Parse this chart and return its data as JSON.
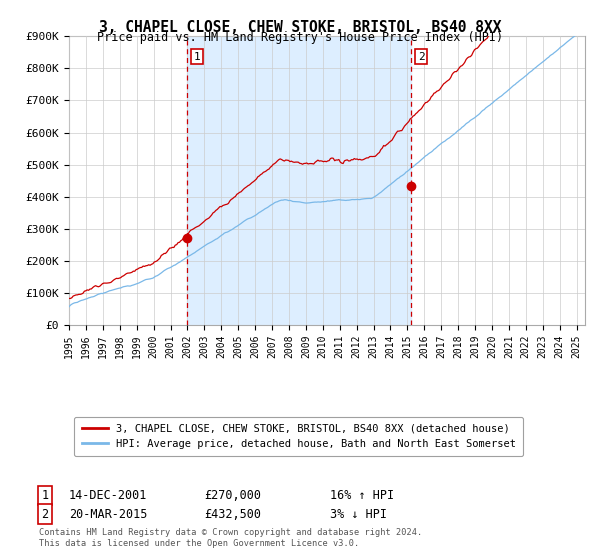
{
  "title": "3, CHAPEL CLOSE, CHEW STOKE, BRISTOL, BS40 8XX",
  "subtitle": "Price paid vs. HM Land Registry's House Price Index (HPI)",
  "xmin": 1995.0,
  "xmax": 2025.5,
  "ymin": 0,
  "ymax": 900000,
  "yticks": [
    0,
    100000,
    200000,
    300000,
    400000,
    500000,
    600000,
    700000,
    800000,
    900000
  ],
  "ytick_labels": [
    "£0",
    "£100K",
    "£200K",
    "£300K",
    "£400K",
    "£500K",
    "£600K",
    "£700K",
    "£800K",
    "£900K"
  ],
  "xtick_years": [
    1995,
    1996,
    1997,
    1998,
    1999,
    2000,
    2001,
    2002,
    2003,
    2004,
    2005,
    2006,
    2007,
    2008,
    2009,
    2010,
    2011,
    2012,
    2013,
    2014,
    2015,
    2016,
    2017,
    2018,
    2019,
    2020,
    2021,
    2022,
    2023,
    2024,
    2025
  ],
  "sale1_x": 2001.95,
  "sale1_y": 270000,
  "sale1_label": "1",
  "sale1_date": "14-DEC-2001",
  "sale1_price": "£270,000",
  "sale1_hpi": "16% ↑ HPI",
  "sale2_x": 2015.22,
  "sale2_y": 432500,
  "sale2_label": "2",
  "sale2_date": "20-MAR-2015",
  "sale2_price": "£432,500",
  "sale2_hpi": "3% ↓ HPI",
  "hpi_color": "#7ab8e8",
  "sale_color": "#cc0000",
  "vline_color": "#cc0000",
  "shade_color": "#ddeeff",
  "grid_color": "#cccccc",
  "background_color": "#ffffff",
  "legend_label_red": "3, CHAPEL CLOSE, CHEW STOKE, BRISTOL, BS40 8XX (detached house)",
  "legend_label_blue": "HPI: Average price, detached house, Bath and North East Somerset",
  "footnote": "Contains HM Land Registry data © Crown copyright and database right 2024.\nThis data is licensed under the Open Government Licence v3.0."
}
